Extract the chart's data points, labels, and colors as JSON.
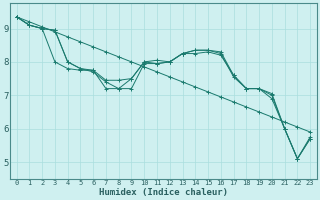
{
  "xlabel": "Humidex (Indice chaleur)",
  "bg_color": "#cff0f0",
  "line_color": "#1a7a6e",
  "grid_color": "#aadede",
  "axis_color": "#4a8a8a",
  "tick_color": "#2a6060",
  "xlim": [
    -0.5,
    23.5
  ],
  "ylim": [
    4.5,
    9.75
  ],
  "xticks": [
    0,
    1,
    2,
    3,
    4,
    5,
    6,
    7,
    8,
    9,
    10,
    11,
    12,
    13,
    14,
    15,
    16,
    17,
    18,
    19,
    20,
    21,
    22,
    23
  ],
  "yticks": [
    5,
    6,
    7,
    8,
    9
  ],
  "series": [
    [
      9.35,
      9.2,
      9.05,
      8.9,
      8.75,
      8.6,
      8.45,
      8.3,
      8.15,
      8.0,
      7.85,
      7.7,
      7.55,
      7.4,
      7.25,
      7.1,
      6.95,
      6.8,
      6.65,
      6.5,
      6.35,
      6.2,
      6.05,
      5.9
    ],
    [
      9.35,
      9.1,
      9.0,
      8.0,
      7.8,
      7.75,
      7.75,
      7.2,
      7.2,
      7.5,
      8.0,
      7.95,
      8.0,
      8.25,
      8.35,
      8.35,
      8.3,
      7.6,
      7.2,
      7.2,
      7.0,
      6.0,
      5.1,
      5.7
    ],
    [
      9.35,
      9.1,
      9.0,
      8.95,
      8.0,
      7.8,
      7.75,
      7.45,
      7.45,
      7.5,
      8.0,
      8.05,
      8.0,
      8.25,
      8.25,
      8.3,
      8.2,
      7.6,
      7.2,
      7.2,
      7.05,
      6.0,
      5.1,
      5.75
    ],
    [
      9.35,
      9.1,
      9.0,
      8.95,
      8.0,
      7.8,
      7.7,
      7.4,
      7.2,
      7.2,
      7.95,
      7.95,
      8.0,
      8.25,
      8.35,
      8.35,
      8.25,
      7.55,
      7.2,
      7.2,
      6.9,
      6.0,
      5.1,
      5.7
    ]
  ],
  "xlabel_fontsize": 6.5,
  "xtick_fontsize": 5.0,
  "ytick_fontsize": 6.5
}
